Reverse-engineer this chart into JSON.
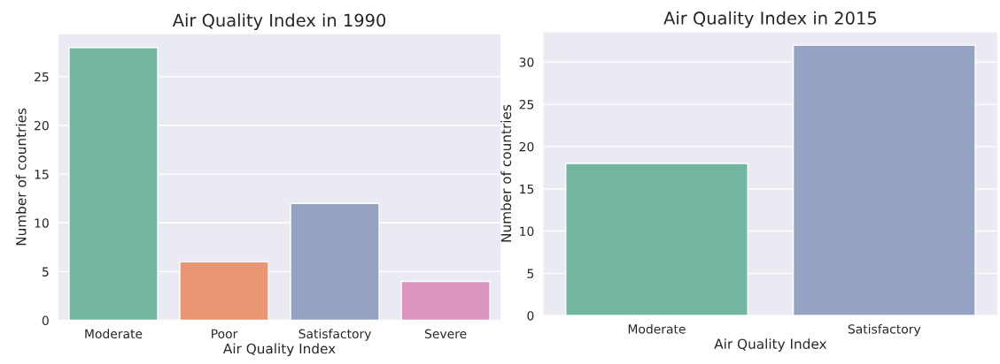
{
  "chart_data": [
    {
      "type": "bar",
      "title": "Air Quality Index in 1990",
      "xlabel": "Air Quality Index",
      "ylabel": "Number of countries",
      "categories": [
        "Moderate",
        "Poor",
        "Satisfactory",
        "Severe"
      ],
      "values": [
        28,
        6,
        12,
        4
      ],
      "colors": [
        "#72b6a1",
        "#e99675",
        "#95a3c3",
        "#db96c0"
      ],
      "ylim": [
        0,
        29.4
      ],
      "yticks": [
        0,
        5,
        10,
        15,
        20,
        25
      ],
      "grid": "y"
    },
    {
      "type": "bar",
      "title": "Air Quality Index in 2015",
      "xlabel": "Air Quality Index",
      "ylabel": "Number of countries",
      "categories": [
        "Moderate",
        "Satisfactory"
      ],
      "values": [
        18,
        32
      ],
      "colors": [
        "#72b6a1",
        "#95a3c3"
      ],
      "ylim": [
        0,
        33.6
      ],
      "yticks": [
        0,
        5,
        10,
        15,
        20,
        25,
        30
      ],
      "grid": "y"
    }
  ]
}
